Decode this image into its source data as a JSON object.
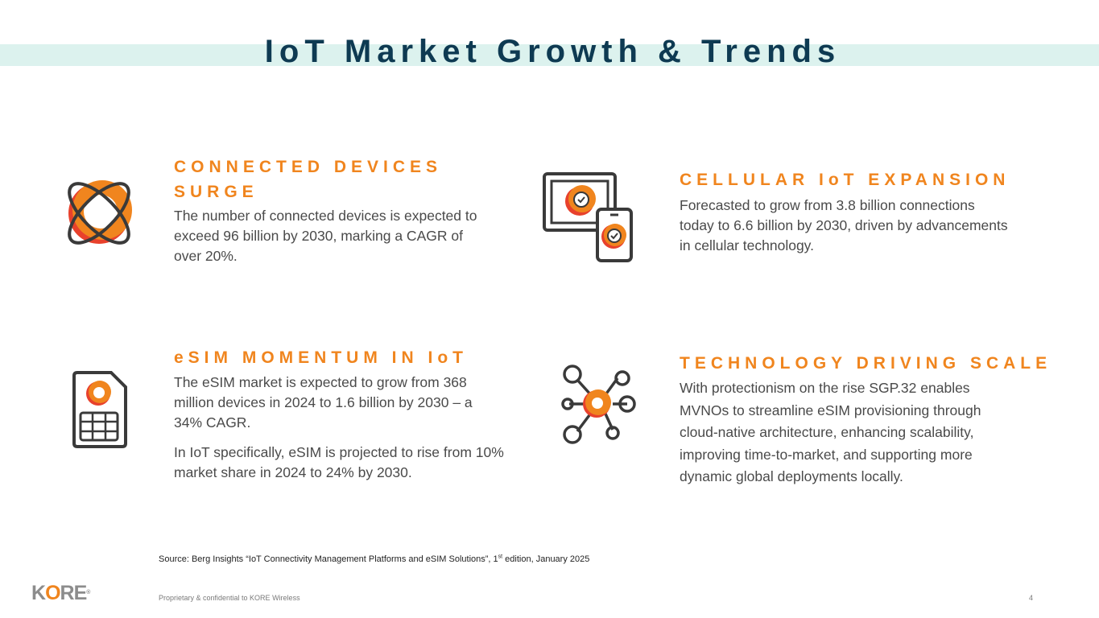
{
  "title": "IoT Market Growth & Trends",
  "sections": [
    {
      "heading_lines": [
        "CONNECTED DEVICES",
        "SURGE"
      ],
      "paragraphs": [
        "The number of connected devices is expected to exceed 96 billion by 2030, marking a CAGR of over 20%."
      ],
      "icon": "orbit-ring-icon"
    },
    {
      "heading_lines": [
        "CELLULAR IoT EXPANSION"
      ],
      "paragraphs": [
        "Forecasted to grow from 3.8 billion connections today to 6.6 billion by 2030, driven by advancements in cellular technology."
      ],
      "icon": "devices-check-icon"
    },
    {
      "heading_lines": [
        "eSIM MOMENTUM IN IoT"
      ],
      "paragraphs": [
        "The eSIM market is expected to grow from 368 million devices in 2024 to 1.6 billion by 2030 – a 34% CAGR.",
        "In IoT specifically, eSIM is projected to rise from 10% market share in 2024 to 24% by 2030."
      ],
      "icon": "sim-card-icon"
    },
    {
      "heading_lines": [
        "TECHNOLOGY DRIVING SCALE"
      ],
      "paragraphs": [
        "With protectionism on the rise SGP.32 enables MVNOs to streamline eSIM provisioning through cloud-native architecture, enhancing scalability, improving time-to-market, and supporting more dynamic global deployments locally."
      ],
      "icon": "network-hub-icon"
    }
  ],
  "source": {
    "prefix": "Source: Berg Insights “IoT Connectivity Management Platforms and eSIM Solutions”, 1",
    "superscript": "st",
    "suffix": " edition, January 2025"
  },
  "footer": {
    "confidential": "Proprietary & confidential to KORE Wireless",
    "page_number": "4"
  },
  "logo": {
    "k": "K",
    "o": "O",
    "re": "RE",
    "reg": "®"
  },
  "colors": {
    "accent": "#f0851e",
    "accent_red": "#e8412c",
    "title": "#0e3a52",
    "band": "#dcf2ee",
    "body": "#4a4a4a",
    "icon_stroke": "#3a3a3a"
  }
}
